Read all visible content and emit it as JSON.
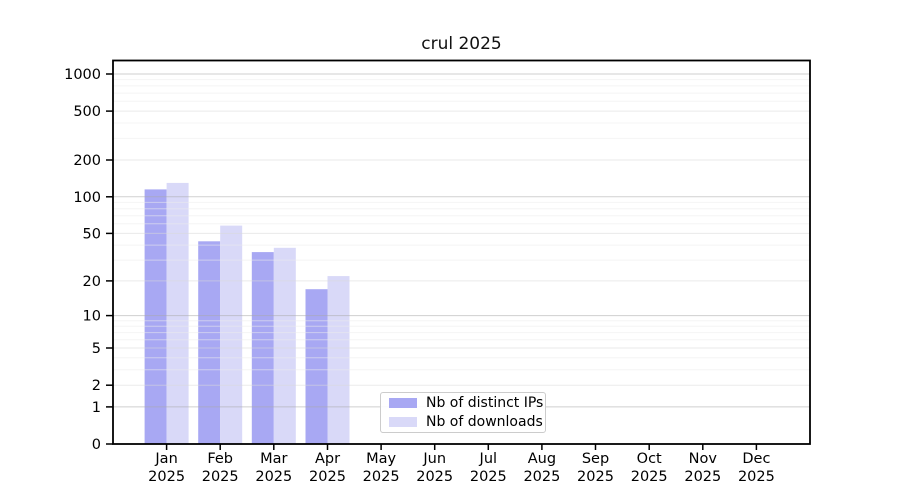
{
  "window": {
    "background": "#ffffff"
  },
  "chart_data": {
    "type": "bar",
    "title": "crul 2025",
    "categories": [
      "Jan 2025",
      "Feb 2025",
      "Mar 2025",
      "Apr 2025",
      "May 2025",
      "Jun 2025",
      "Jul 2025",
      "Aug 2025",
      "Sep 2025",
      "Oct 2025",
      "Nov 2025",
      "Dec 2025"
    ],
    "series": [
      {
        "name": "Nb of distinct IPs",
        "color": "#a8a8f3",
        "values": [
          115,
          43,
          35,
          17,
          0,
          0,
          0,
          0,
          0,
          0,
          0,
          0
        ]
      },
      {
        "name": "Nb of downloads",
        "color": "#d9d9f8",
        "values": [
          130,
          58,
          38,
          22,
          0,
          0,
          0,
          0,
          0,
          0,
          0,
          0
        ]
      }
    ],
    "yticks": [
      0,
      1,
      2,
      5,
      10,
      20,
      50,
      100,
      200,
      500,
      1000
    ],
    "ylim": [
      0,
      1300
    ],
    "y_scale": "log10(v+1)",
    "grid": "on",
    "legend_position": "lower-center-inside",
    "xlabel": "",
    "ylabel": ""
  }
}
